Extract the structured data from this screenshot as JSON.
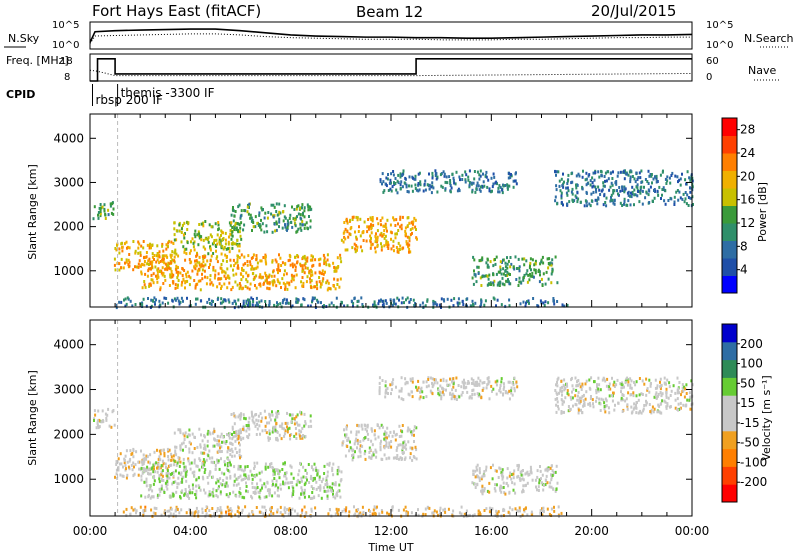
{
  "header": {
    "station": "Fort Hays East (fitACF)",
    "beam": "Beam 12",
    "date": "20/Jul/2015"
  },
  "colors": {
    "power_scale": [
      "#0000ff",
      "#1f4fa8",
      "#2e6da4",
      "#2f8f6a",
      "#3a9a3a",
      "#c8c000",
      "#f0b000",
      "#ff7f00",
      "#ff4000",
      "#ff0000"
    ],
    "velocity_scale": [
      "#ff0000",
      "#ff4000",
      "#ff7f00",
      "#f0a020",
      "#c8c8c8",
      "#c8c8c8",
      "#66cc33",
      "#2e8b57",
      "#2e6da4",
      "#0000cc"
    ],
    "ground_scatter": "#c8c8c8"
  },
  "chart_data": [
    {
      "type": "line",
      "panel": "noise",
      "left_label": "N.Sky",
      "right_label": "N.Search",
      "left_ticks": [
        "10^5",
        "10^0"
      ],
      "right_ticks": [
        "10^5",
        "10^0"
      ],
      "x_range_hours": [
        0,
        24
      ],
      "series": [
        {
          "style": "solid",
          "x": [
            0,
            0.2,
            1,
            2,
            3,
            4,
            5,
            6,
            7,
            8,
            9,
            10,
            11,
            12,
            13,
            14,
            15,
            16,
            17,
            18,
            19,
            20,
            21,
            22,
            23,
            24
          ],
          "y": [
            1.2,
            3.2,
            3.4,
            3.5,
            3.6,
            3.7,
            3.7,
            3.4,
            3.0,
            2.6,
            2.4,
            2.3,
            2.2,
            2.2,
            2.1,
            2.1,
            2.0,
            2.0,
            2.1,
            2.2,
            2.3,
            2.4,
            2.5,
            2.6,
            2.6,
            2.7
          ]
        },
        {
          "style": "dotted",
          "x": [
            0,
            0.2,
            1,
            2,
            3,
            4,
            5,
            6,
            7,
            8,
            9,
            10,
            11,
            12,
            13,
            14,
            15,
            16,
            17,
            18,
            19,
            20,
            21,
            22,
            23,
            24
          ],
          "y": [
            1.0,
            2.4,
            2.5,
            2.6,
            2.7,
            2.8,
            2.8,
            2.6,
            2.3,
            2.1,
            2.0,
            1.9,
            1.8,
            1.8,
            1.8,
            1.7,
            1.7,
            1.7,
            1.8,
            1.8,
            1.9,
            2.0,
            2.1,
            2.1,
            2.2,
            2.2
          ]
        }
      ]
    },
    {
      "type": "line",
      "panel": "frequency",
      "left_label": "Freq. [MHz]",
      "right_label": "Nave",
      "left_ticks": [
        "18",
        "8"
      ],
      "right_ticks": [
        "60",
        "0"
      ],
      "x_range_hours": [
        0,
        24
      ],
      "series": [
        {
          "style": "solid",
          "x": [
            0,
            0.3,
            0.3,
            1.0,
            1.0,
            13.0,
            13.0,
            24
          ],
          "y": [
            8,
            8,
            16.2,
            16.2,
            10.6,
            10.6,
            16.2,
            16.2
          ]
        },
        {
          "style": "dotted",
          "x": [
            0,
            0.3,
            1.0,
            13.0,
            24
          ],
          "y": [
            12,
            11.6,
            10.0,
            10.0,
            10.8
          ]
        }
      ]
    },
    {
      "type": "table",
      "panel": "cpid",
      "label": "CPID",
      "entries": [
        {
          "text": "rbsp 200 IF",
          "start_hours": 0.1
        },
        {
          "text": "themis -3300 IF",
          "start_hours": 1.1
        }
      ]
    },
    {
      "type": "heatmap",
      "panel": "power",
      "ylabel": "Slant Range [km]",
      "ylim": [
        180,
        4550
      ],
      "y_ticks": [
        1000,
        2000,
        3000,
        4000
      ],
      "x_range_hours": [
        0,
        24
      ],
      "colorbar": {
        "label": "Power [dB]",
        "ticks": [
          4,
          8,
          12,
          16,
          20,
          24,
          28
        ],
        "range": [
          0,
          30
        ]
      },
      "regions": [
        {
          "t0": 0.1,
          "t1": 0.95,
          "r0": 2180,
          "r1": 2600,
          "value": 12
        },
        {
          "t0": 0.95,
          "t1": 3.3,
          "r0": 1050,
          "r1": 1700,
          "value": 20
        },
        {
          "t0": 3.3,
          "t1": 6.0,
          "r0": 1400,
          "r1": 2150,
          "value": 16
        },
        {
          "t0": 5.6,
          "t1": 8.8,
          "r0": 1900,
          "r1": 2550,
          "value": 12
        },
        {
          "t0": 2.0,
          "t1": 10.0,
          "r0": 600,
          "r1": 1400,
          "value": 20
        },
        {
          "t0": 10.0,
          "t1": 13.0,
          "r0": 1450,
          "r1": 2250,
          "value": 20
        },
        {
          "t0": 15.2,
          "t1": 18.6,
          "r0": 700,
          "r1": 1350,
          "value": 12
        },
        {
          "t0": 18.5,
          "t1": 24.0,
          "r0": 2500,
          "r1": 3300,
          "value": 8
        },
        {
          "t0": 11.5,
          "t1": 17.0,
          "r0": 2800,
          "r1": 3300,
          "value": 8
        },
        {
          "t0": 1.0,
          "t1": 19.0,
          "r0": 200,
          "r1": 420,
          "value": 8
        }
      ]
    },
    {
      "type": "heatmap",
      "panel": "velocity",
      "ylabel": "Slant Range [km]",
      "xlabel": "Time UT",
      "ylim": [
        180,
        4550
      ],
      "y_ticks": [
        1000,
        2000,
        3000,
        4000
      ],
      "x_ticks": [
        "00:00",
        "04:00",
        "08:00",
        "12:00",
        "16:00",
        "20:00",
        "00:00"
      ],
      "x_range_hours": [
        0,
        24
      ],
      "colorbar": {
        "label": "Velocity [m s⁻¹]",
        "ticks": [
          200,
          100,
          50,
          15,
          -15,
          -50,
          -100,
          -200
        ],
        "range": [
          -250,
          250
        ]
      },
      "regions": [
        {
          "t0": 0.1,
          "t1": 0.95,
          "r0": 2180,
          "r1": 2600,
          "value": 0
        },
        {
          "t0": 0.95,
          "t1": 3.3,
          "r0": 1050,
          "r1": 1700,
          "value": -30
        },
        {
          "t0": 3.3,
          "t1": 6.0,
          "r0": 1400,
          "r1": 2150,
          "value": 0
        },
        {
          "t0": 5.6,
          "t1": 8.8,
          "r0": 1900,
          "r1": 2550,
          "value": 0
        },
        {
          "t0": 2.0,
          "t1": 10.0,
          "r0": 600,
          "r1": 1400,
          "value": 30
        },
        {
          "t0": 10.0,
          "t1": 13.0,
          "r0": 1450,
          "r1": 2250,
          "value": 0
        },
        {
          "t0": 15.2,
          "t1": 18.6,
          "r0": 700,
          "r1": 1350,
          "value": 0
        },
        {
          "t0": 18.5,
          "t1": 24.0,
          "r0": 2500,
          "r1": 3300,
          "value": 0
        },
        {
          "t0": 11.5,
          "t1": 17.0,
          "r0": 2800,
          "r1": 3300,
          "value": 0
        },
        {
          "t0": 1.0,
          "t1": 19.0,
          "r0": 200,
          "r1": 420,
          "value": -40
        }
      ]
    }
  ]
}
